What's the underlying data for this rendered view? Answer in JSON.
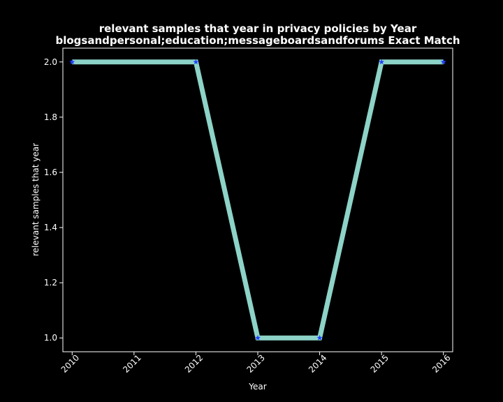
{
  "chart_data": {
    "type": "line",
    "title_line1": "relevant samples that year in privacy policies by Year",
    "title_line2": "blogsandpersonal;education;messageboardsandforums Exact Match",
    "xlabel": "Year",
    "ylabel": "relevant samples that year",
    "x": [
      2010,
      2012,
      2013,
      2014,
      2015,
      2016
    ],
    "y": [
      2,
      2,
      1,
      1,
      2,
      2
    ],
    "x_ticks": [
      "2010",
      "2011",
      "2012",
      "2013",
      "2014",
      "2015",
      "2016"
    ],
    "y_ticks": [
      "1.0",
      "1.2",
      "1.4",
      "1.6",
      "1.8",
      "2.0"
    ],
    "xlim": [
      2009.85,
      2016.15
    ],
    "ylim": [
      0.95,
      2.05
    ],
    "grid": false,
    "line_color": "#8dd3c7",
    "marker_color": "#1f3fff",
    "background": "#000000",
    "axis_color": "#ffffff"
  }
}
